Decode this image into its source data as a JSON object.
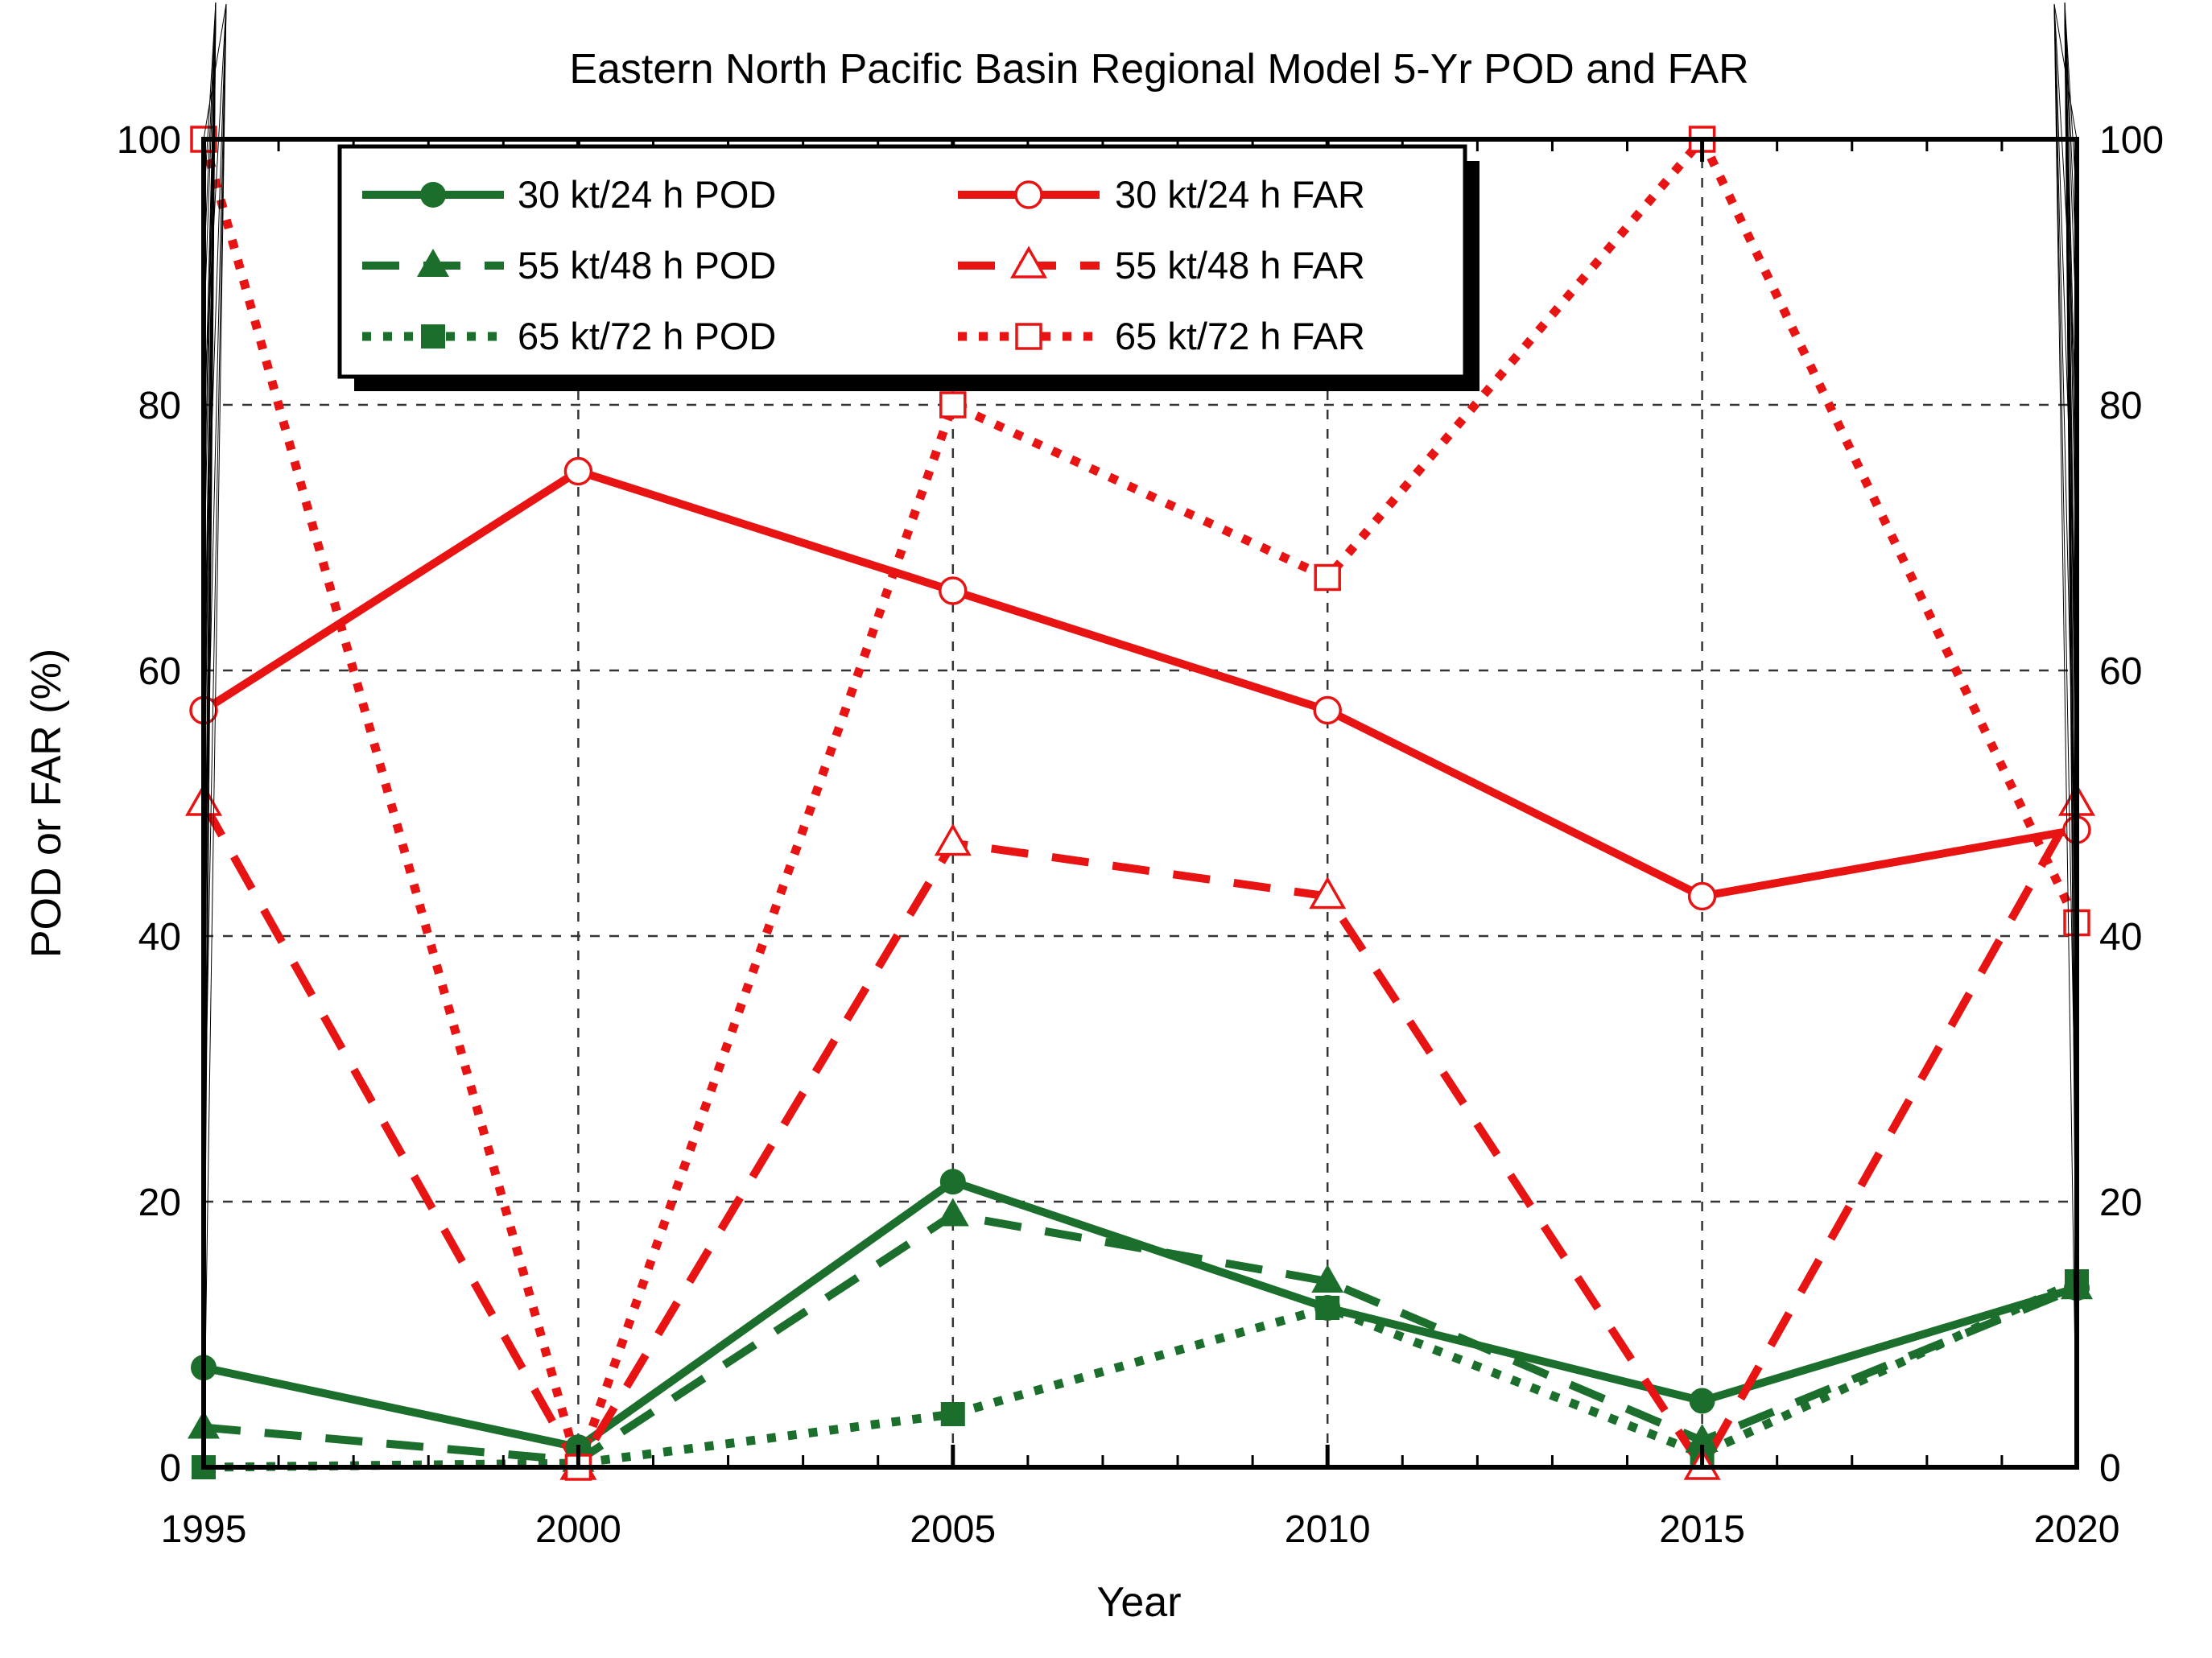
{
  "title": "Eastern North Pacific Basin Regional Model 5-Yr POD and FAR",
  "xlabel": "Year",
  "ylabel": "POD or FAR (%)",
  "colors": {
    "pod_green": "#1b6e2b",
    "far_red": "#e81414",
    "grid": "#333333",
    "frame": "#000000",
    "legend_bg": "#ffffff",
    "legend_shadow": "#000000"
  },
  "chart_data": {
    "type": "line",
    "x": [
      1995,
      2000,
      2005,
      2010,
      2015,
      2020
    ],
    "xlim": [
      1995,
      2020
    ],
    "ylim": [
      0,
      100
    ],
    "xticks_major": [
      1995,
      2000,
      2005,
      2010,
      2015,
      2020
    ],
    "xtick_labels": [
      "1995",
      "2000",
      "2005",
      "2010",
      "2015",
      "2020"
    ],
    "xtick_minor_step": 1,
    "yticks_major": [
      0,
      20,
      40,
      60,
      80,
      100
    ],
    "ytick_labels": [
      "0",
      "20",
      "40",
      "60",
      "80",
      "100"
    ],
    "ytick_minor_step": 5,
    "grid": true,
    "legend_position": "top-left",
    "series": [
      {
        "name": "30 kt/24 h POD",
        "group": "POD",
        "color": "#1b6e2b",
        "line": "solid",
        "marker": "circle-filled",
        "values": [
          7.5,
          1.5,
          21.5,
          12,
          5,
          13.5
        ]
      },
      {
        "name": "55 kt/48 h POD",
        "group": "POD",
        "color": "#1b6e2b",
        "line": "dashed",
        "marker": "triangle-filled",
        "values": [
          3,
          0.5,
          19,
          14,
          2,
          13.5
        ]
      },
      {
        "name": "65 kt/72 h POD",
        "group": "POD",
        "color": "#1b6e2b",
        "line": "dotted",
        "marker": "square-filled",
        "values": [
          0,
          0.3,
          4,
          12,
          1,
          14
        ]
      },
      {
        "name": "30 kt/24 h FAR",
        "group": "FAR",
        "color": "#e81414",
        "line": "solid",
        "marker": "circle-open",
        "values": [
          57,
          75,
          66,
          57,
          43,
          48
        ]
      },
      {
        "name": "55 kt/48 h FAR",
        "group": "FAR",
        "color": "#e81414",
        "line": "dashed",
        "marker": "triangle-open",
        "values": [
          50,
          0,
          47,
          43,
          0,
          50
        ]
      },
      {
        "name": "65 kt/72 h FAR",
        "group": "FAR",
        "color": "#e81414",
        "line": "dotted",
        "marker": "square-open",
        "values": [
          100,
          0,
          80,
          67,
          100,
          41
        ]
      }
    ]
  }
}
